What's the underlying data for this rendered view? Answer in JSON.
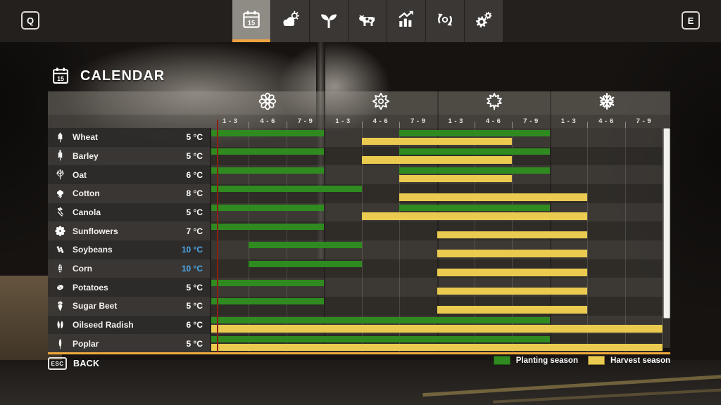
{
  "topbar": {
    "left_key": "Q",
    "right_key": "E",
    "tabs": [
      {
        "id": "calendar",
        "icon": "calendar-icon",
        "selected": true
      },
      {
        "id": "weather",
        "icon": "weather-icon",
        "selected": false
      },
      {
        "id": "crops",
        "icon": "sprout-icon",
        "selected": false
      },
      {
        "id": "animals",
        "icon": "cow-icon",
        "selected": false
      },
      {
        "id": "finances",
        "icon": "chart-icon",
        "selected": false
      },
      {
        "id": "production",
        "icon": "cycle-icon",
        "selected": false
      },
      {
        "id": "settings",
        "icon": "gears-icon",
        "selected": false
      }
    ]
  },
  "page": {
    "title": "CALENDAR",
    "title_icon": "calendar-icon"
  },
  "chart_data": {
    "type": "gantt-calendar",
    "columns_total": 12,
    "current_day_column": 1.15,
    "seasons": [
      {
        "name": "Spring",
        "icon": "flower-icon",
        "periods": [
          "1 - 3",
          "4 - 6",
          "7 - 9"
        ]
      },
      {
        "name": "Summer",
        "icon": "sun-icon",
        "periods": [
          "1 - 3",
          "4 - 6",
          "7 - 9"
        ]
      },
      {
        "name": "Autumn",
        "icon": "maple-leaf-icon",
        "periods": [
          "1 - 3",
          "4 - 6",
          "7 - 9"
        ]
      },
      {
        "name": "Winter",
        "icon": "snowflake-icon",
        "periods": [
          "1 - 3",
          "4 - 6",
          "7 - 9"
        ]
      }
    ],
    "colors": {
      "planting": "#2f8b1f",
      "harvest": "#eacb4f",
      "temp_normal": "#ffffff",
      "temp_highlight": "#4da8ea",
      "current_day_line": "#8c1f12",
      "accent_orange": "#f0a93e"
    },
    "rows": [
      {
        "crop": "Wheat",
        "icon": "wheat-icon",
        "temp": "5 °C",
        "temp_highlight": false,
        "planting": [
          [
            1,
            3
          ],
          [
            6,
            9
          ]
        ],
        "harvest": [
          [
            5,
            8
          ]
        ]
      },
      {
        "crop": "Barley",
        "icon": "barley-icon",
        "temp": "5 °C",
        "temp_highlight": false,
        "planting": [
          [
            1,
            3
          ],
          [
            6,
            9
          ]
        ],
        "harvest": [
          [
            5,
            8
          ]
        ]
      },
      {
        "crop": "Oat",
        "icon": "oat-icon",
        "temp": "6 °C",
        "temp_highlight": false,
        "planting": [
          [
            1,
            3
          ],
          [
            6,
            9
          ]
        ],
        "harvest": [
          [
            6,
            8
          ]
        ]
      },
      {
        "crop": "Cotton",
        "icon": "cotton-icon",
        "temp": "8 °C",
        "temp_highlight": false,
        "planting": [
          [
            1,
            4
          ]
        ],
        "harvest": [
          [
            6,
            10
          ]
        ]
      },
      {
        "crop": "Canola",
        "icon": "canola-icon",
        "temp": "5 °C",
        "temp_highlight": false,
        "planting": [
          [
            1,
            3
          ],
          [
            6,
            9
          ]
        ],
        "harvest": [
          [
            5,
            10
          ]
        ]
      },
      {
        "crop": "Sunflowers",
        "icon": "sunflower-icon",
        "temp": "7 °C",
        "temp_highlight": false,
        "planting": [
          [
            1,
            3
          ]
        ],
        "harvest": [
          [
            7,
            10
          ]
        ]
      },
      {
        "crop": "Soybeans",
        "icon": "soybean-icon",
        "temp": "10 °C",
        "temp_highlight": true,
        "planting": [
          [
            2,
            4
          ]
        ],
        "harvest": [
          [
            7,
            10
          ]
        ]
      },
      {
        "crop": "Corn",
        "icon": "corn-icon",
        "temp": "10 °C",
        "temp_highlight": true,
        "planting": [
          [
            2,
            4
          ]
        ],
        "harvest": [
          [
            7,
            10
          ]
        ]
      },
      {
        "crop": "Potatoes",
        "icon": "potato-icon",
        "temp": "5 °C",
        "temp_highlight": false,
        "planting": [
          [
            1,
            3
          ]
        ],
        "harvest": [
          [
            7,
            10
          ]
        ]
      },
      {
        "crop": "Sugar Beet",
        "icon": "sugarbeet-icon",
        "temp": "5 °C",
        "temp_highlight": false,
        "planting": [
          [
            1,
            3
          ]
        ],
        "harvest": [
          [
            7,
            10
          ]
        ]
      },
      {
        "crop": "Oilseed Radish",
        "icon": "radish-icon",
        "temp": "6 °C",
        "temp_highlight": false,
        "planting": [
          [
            1,
            9
          ]
        ],
        "harvest": [
          [
            1,
            12
          ]
        ]
      },
      {
        "crop": "Poplar",
        "icon": "poplar-icon",
        "temp": "5 °C",
        "temp_highlight": false,
        "planting": [
          [
            1,
            9
          ]
        ],
        "harvest": [
          [
            1,
            12
          ]
        ]
      }
    ],
    "legend": [
      {
        "label": "Planting season",
        "color": "#2f8b1f"
      },
      {
        "label": "Harvest season",
        "color": "#eacb4f"
      }
    ]
  },
  "footer": {
    "back_key": "ESC",
    "back_label": "BACK"
  }
}
